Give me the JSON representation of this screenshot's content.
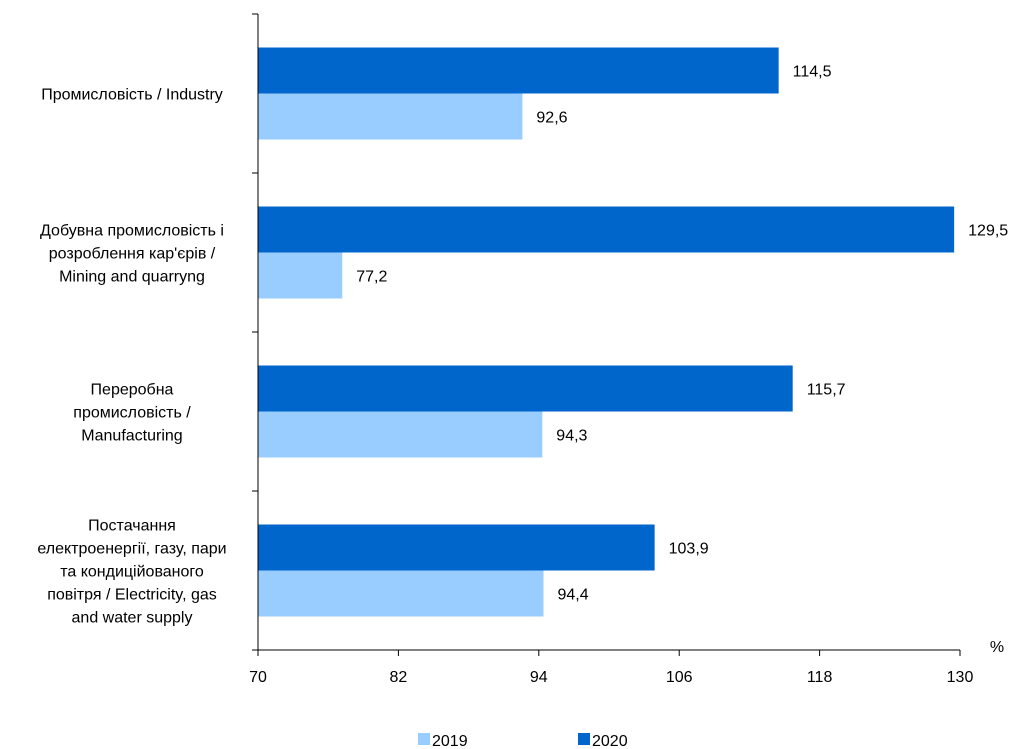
{
  "chart_data": {
    "type": "bar",
    "orientation": "horizontal",
    "categories": [
      [
        "Промисловість / Industry"
      ],
      [
        "Добувна промисловість і",
        "розроблення кар'єрів /",
        "Mining and quarryng"
      ],
      [
        "Переробна",
        "промисловість /",
        "Manufacturing"
      ],
      [
        "Постачання",
        "електроенергії, газу, пари",
        "та кондиційованого",
        "повітря / Electricity, gas",
        "and water supply"
      ]
    ],
    "series": [
      {
        "name": "2020",
        "color": "#0066cc",
        "values": [
          114.5,
          129.5,
          115.7,
          103.9
        ],
        "labels": [
          "114,5",
          "129,5",
          "115,7",
          "103,9"
        ]
      },
      {
        "name": "2019",
        "color": "#99ccff",
        "values": [
          92.6,
          77.2,
          94.3,
          94.4
        ],
        "labels": [
          "92,6",
          "77,2",
          "94,3",
          "94,4"
        ]
      }
    ],
    "xlim": [
      70,
      130
    ],
    "xticks": [
      "70",
      "82",
      "94",
      "106",
      "118",
      "130"
    ],
    "xtick_values": [
      70,
      82,
      94,
      106,
      118,
      130
    ],
    "unit": "%",
    "legend": [
      {
        "name": "2019",
        "color": "#99ccff"
      },
      {
        "name": "2020",
        "color": "#0066cc"
      }
    ],
    "legend_position": "bottom",
    "grid": false
  }
}
